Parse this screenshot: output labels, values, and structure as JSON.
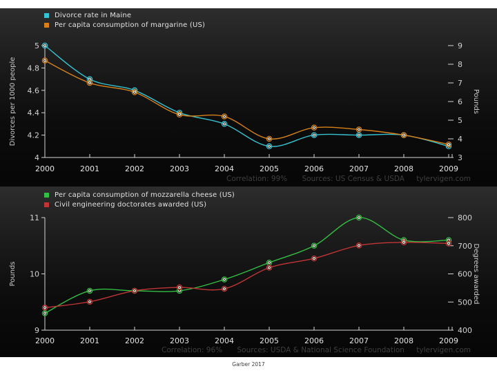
{
  "caption": "Garber 2017",
  "chart_data": [
    {
      "type": "line",
      "x": [
        2000,
        2001,
        2002,
        2003,
        2004,
        2005,
        2006,
        2007,
        2008,
        2009
      ],
      "x_tick_labels": [
        "2000",
        "2001",
        "2002",
        "2003",
        "2004",
        "2005",
        "2006",
        "2007",
        "2008",
        "2009"
      ],
      "legend": [
        {
          "label": "Divorce rate in Maine",
          "color": "#35c4d3"
        },
        {
          "label": "Per capita consumption of margarine (US)",
          "color": "#d98119"
        }
      ],
      "left_axis": {
        "label": "Divorces per 1000 people",
        "min": 4,
        "max": 5,
        "ticks": [
          5,
          4.8,
          4.6,
          4.4,
          4.2,
          4
        ],
        "tick_labels": [
          "5",
          "4.8",
          "4.6",
          "4.4",
          "4.2",
          "4"
        ]
      },
      "right_axis": {
        "label": "Pounds",
        "min": 3,
        "max": 9,
        "ticks": [
          9,
          8,
          7,
          6,
          5,
          4,
          3
        ],
        "tick_labels": [
          "9",
          "8",
          "7",
          "6",
          "5",
          "4",
          "3"
        ]
      },
      "series": [
        {
          "name": "Divorce rate in Maine",
          "axis": "left",
          "color": "#35c4d3",
          "values": [
            5.0,
            4.7,
            4.6,
            4.4,
            4.3,
            4.1,
            4.2,
            4.2,
            4.2,
            4.1
          ]
        },
        {
          "name": "Per capita consumption of margarine (US)",
          "axis": "right",
          "color": "#d98119",
          "values": [
            8.2,
            7.0,
            6.5,
            5.3,
            5.2,
            4.0,
            4.6,
            4.5,
            4.2,
            3.7
          ]
        }
      ],
      "correlation_percent": 99,
      "footer": {
        "correlation": "Correlation: 99%",
        "sources": "Sources: US Census & USDA",
        "site": "tylervigen.com"
      }
    },
    {
      "type": "line",
      "x": [
        2000,
        2001,
        2002,
        2003,
        2004,
        2005,
        2006,
        2007,
        2008,
        2009
      ],
      "x_tick_labels": [
        "2000",
        "2001",
        "2002",
        "2003",
        "2004",
        "2005",
        "2006",
        "2007",
        "2008",
        "2009"
      ],
      "legend": [
        {
          "label": "Per capita consumption of mozzarella cheese (US)",
          "color": "#33bf43"
        },
        {
          "label": "Civil engineering doctorates awarded (US)",
          "color": "#c23535"
        }
      ],
      "left_axis": {
        "label": "Pounds",
        "min": 9,
        "max": 11,
        "ticks": [
          11,
          10,
          9
        ],
        "tick_labels": [
          "11",
          "10",
          "9"
        ]
      },
      "right_axis": {
        "label": "Degrees awarded",
        "min": 400,
        "max": 800,
        "ticks": [
          800,
          700,
          600,
          500,
          400
        ],
        "tick_labels": [
          "800",
          "700",
          "600",
          "500",
          "400"
        ]
      },
      "series": [
        {
          "name": "Per capita consumption of mozzarella cheese (US)",
          "axis": "left",
          "color": "#33bf43",
          "values": [
            9.3,
            9.7,
            9.7,
            9.7,
            9.9,
            10.2,
            10.5,
            11.0,
            10.6,
            10.6
          ]
        },
        {
          "name": "Civil engineering doctorates awarded (US)",
          "axis": "right",
          "color": "#c23535",
          "values": [
            480,
            501,
            540,
            552,
            547,
            622,
            655,
            701,
            712,
            708
          ]
        }
      ],
      "correlation_percent": 96,
      "footer": {
        "correlation": "Correlation: 96%",
        "sources": "Sources: USDA & National Science Foundation",
        "site": "tylervigen.com"
      }
    }
  ]
}
